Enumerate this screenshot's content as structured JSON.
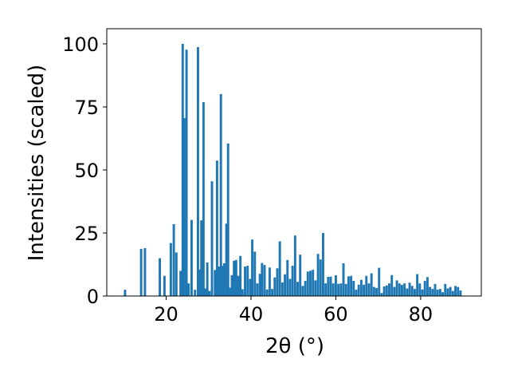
{
  "chart_data": {
    "type": "bar",
    "xlabel": "2θ (°)",
    "ylabel": "Intensities (scaled)",
    "xlim": [
      6.0,
      94.3
    ],
    "ylim": [
      0,
      106
    ],
    "xticks": [
      20,
      40,
      60,
      80
    ],
    "yticks": [
      0,
      25,
      50,
      75,
      100
    ],
    "bar_width_deg": 0.55,
    "bar_color": "#1f77b4",
    "grid": false,
    "x": [
      10.3,
      14.1,
      15.0,
      18.5,
      19.6,
      21.1,
      21.8,
      22.4,
      23.4,
      23.9,
      24.3,
      24.8,
      25.3,
      26.0,
      26.8,
      27.5,
      27.9,
      28.3,
      28.8,
      29.2,
      29.7,
      30.2,
      30.8,
      31.5,
      32.0,
      32.4,
      32.9,
      33.3,
      33.7,
      34.2,
      34.6,
      35.0,
      35.5,
      36.0,
      36.5,
      37.0,
      37.5,
      38.0,
      38.6,
      39.2,
      39.8,
      40.3,
      40.9,
      41.5,
      42.1,
      42.6,
      43.2,
      43.8,
      44.4,
      45.0,
      45.6,
      46.2,
      46.8,
      47.4,
      48.0,
      48.6,
      49.2,
      49.8,
      50.4,
      51.0,
      51.6,
      52.2,
      52.8,
      53.4,
      54.0,
      54.6,
      55.2,
      55.8,
      56.4,
      57.0,
      57.6,
      58.2,
      58.8,
      59.4,
      60.0,
      60.6,
      61.2,
      61.8,
      62.4,
      63.0,
      63.6,
      64.2,
      64.8,
      65.4,
      66.0,
      66.6,
      67.2,
      67.8,
      68.4,
      69.0,
      69.6,
      70.2,
      70.8,
      71.4,
      72.0,
      72.6,
      73.2,
      73.8,
      74.4,
      75.0,
      75.6,
      76.2,
      76.8,
      77.4,
      78.0,
      78.6,
      79.2,
      79.8,
      80.4,
      81.0,
      81.6,
      82.2,
      82.8,
      83.4,
      84.0,
      84.6,
      85.2,
      85.8,
      86.4,
      87.0,
      87.6,
      88.2,
      88.8,
      89.4
    ],
    "values": [
      2.5,
      18.7,
      19.0,
      15.0,
      8.0,
      21.0,
      28.5,
      17.3,
      10.0,
      100.0,
      70.5,
      97.7,
      5.0,
      30.2,
      2.5,
      98.7,
      10.5,
      30.0,
      76.9,
      3.0,
      13.3,
      2.0,
      45.5,
      10.3,
      53.7,
      11.7,
      80.1,
      12.0,
      13.0,
      28.7,
      60.5,
      3.3,
      8.3,
      14.0,
      14.3,
      8.0,
      15.9,
      2.7,
      11.7,
      12.0,
      6.8,
      22.4,
      17.6,
      5.0,
      8.8,
      13.1,
      12.3,
      2.6,
      11.3,
      2.8,
      7.4,
      11.0,
      21.7,
      5.4,
      8.6,
      14.3,
      6.8,
      12.0,
      24.0,
      5.6,
      16.4,
      4.0,
      6.0,
      9.7,
      10.0,
      10.4,
      6.2,
      16.7,
      14.5,
      25.0,
      5.0,
      7.6,
      7.7,
      5.0,
      8.2,
      4.8,
      5.0,
      13.0,
      4.8,
      7.8,
      8.0,
      6.0,
      2.5,
      4.5,
      6.4,
      4.5,
      8.0,
      5.0,
      9.0,
      3.6,
      3.2,
      11.2,
      1.2,
      3.8,
      4.2,
      5.0,
      8.3,
      3.6,
      6.2,
      5.0,
      4.4,
      5.0,
      3.0,
      5.3,
      4.0,
      2.8,
      8.7,
      5.0,
      2.6,
      6.0,
      7.5,
      3.6,
      2.8,
      4.8,
      2.5,
      2.8,
      1.5,
      4.8,
      3.0,
      3.6,
      2.0,
      4.0,
      3.6,
      2.2
    ]
  }
}
